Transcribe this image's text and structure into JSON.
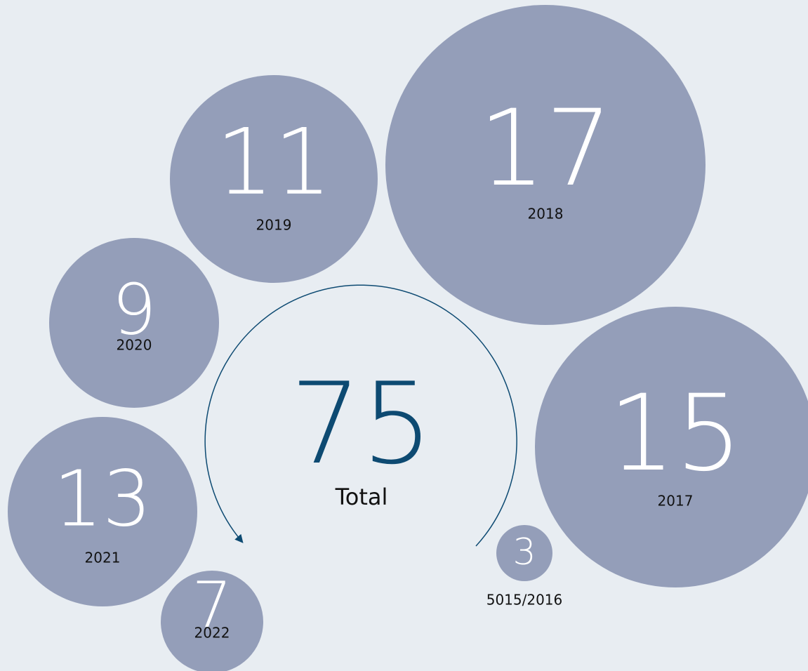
{
  "chart_data": {
    "type": "bubble",
    "categories": [
      "5015/2016",
      "2017",
      "2018",
      "2019",
      "2020",
      "2021",
      "2022"
    ],
    "values": [
      3,
      15,
      17,
      11,
      9,
      13,
      7
    ],
    "color": "#949eb9",
    "total": 75,
    "total_label": "Total"
  }
}
